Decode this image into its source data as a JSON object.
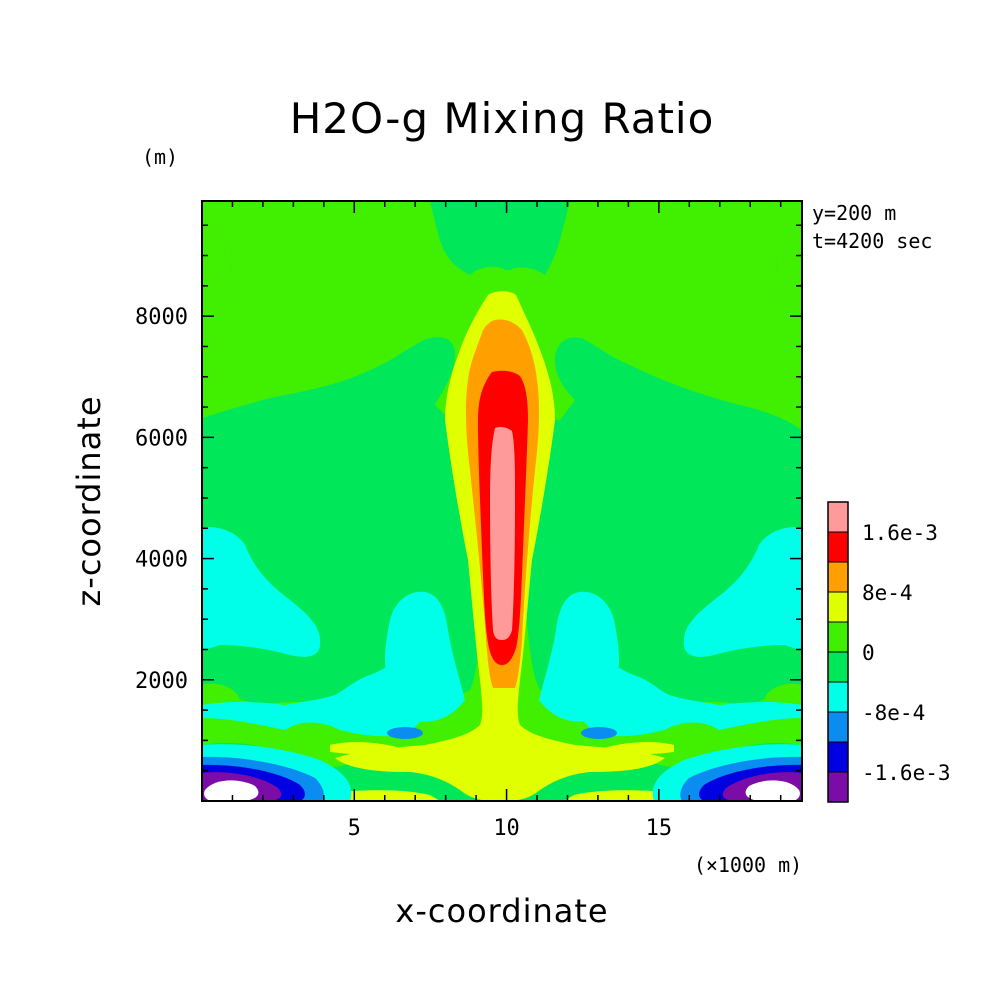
{
  "chart_data": {
    "type": "contour",
    "title": "H2O-g Mixing Ratio",
    "xlabel": "x-coordinate",
    "ylabel": "z-coordinate",
    "x_unit": "(×1000 m)",
    "y_unit": "(m)",
    "xlim": [
      0,
      19.7
    ],
    "ylim": [
      0,
      9900
    ],
    "x_ticks": [
      5,
      10,
      15
    ],
    "y_ticks": [
      2000,
      4000,
      6000,
      8000
    ],
    "annotations": [
      "y=200 m",
      "t=4200 sec"
    ],
    "colorbar": {
      "levels": [
        {
          "max": -0.0016,
          "color": "#7b0ca8"
        },
        {
          "min": -0.0016,
          "max": -0.0012,
          "color": "#0000e0"
        },
        {
          "min": -0.0012,
          "max": -0.0008,
          "color": "#0a8cf0"
        },
        {
          "min": -0.0008,
          "max": -0.0004,
          "color": "#00ffe8"
        },
        {
          "min": -0.0004,
          "max": 0,
          "color": "#00e85a"
        },
        {
          "min": 0,
          "max": 0.0004,
          "color": "#40f000"
        },
        {
          "min": 0.0004,
          "max": 0.0008,
          "color": "#e0ff00"
        },
        {
          "min": 0.0008,
          "max": 0.0012,
          "color": "#ffa000"
        },
        {
          "min": 0.0012,
          "max": 0.0016,
          "color": "#ff0000"
        },
        {
          "min": 0.0016,
          "color": "#ff9a9a"
        }
      ],
      "labels": [
        {
          "text": "1.6e-3",
          "value": 0.0016
        },
        {
          "text": "8e-4",
          "value": 0.0008
        },
        {
          "text": "0",
          "value": 0
        },
        {
          "text": "-8e-4",
          "value": -0.0008
        },
        {
          "text": "-1.6e-3",
          "value": -0.0016
        }
      ]
    },
    "regions_note_values": {
      "background_level": -0.0002,
      "plume_peak_level": 0.0018
    }
  }
}
